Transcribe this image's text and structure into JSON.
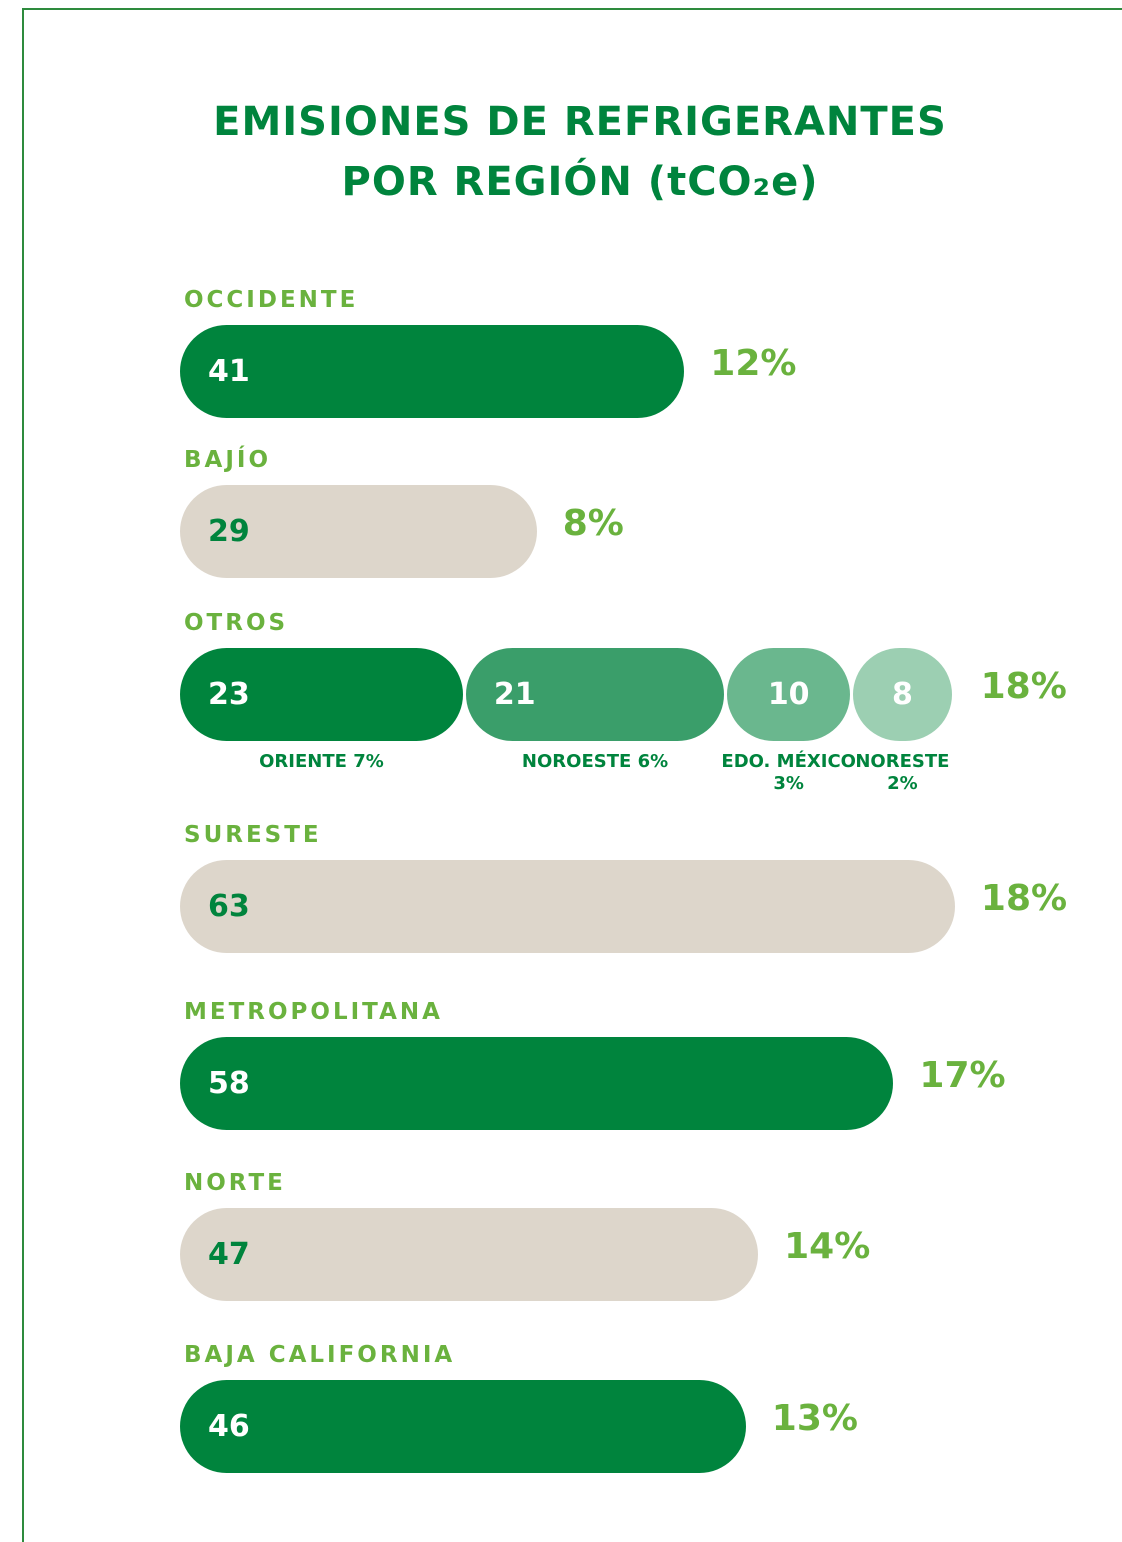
{
  "chart_data": {
    "type": "bar",
    "title": "EMISIONES DE REFRIGERANTES POR REGIÓN (tCO₂e)",
    "rows": [
      {
        "name": "OCCIDENTE",
        "value": 41,
        "share": 12,
        "share_label": "12%",
        "color": "#00843d",
        "value_color": "#ffffff"
      },
      {
        "name": "BAJÍO",
        "value": 29,
        "share": 8,
        "share_label": "8%",
        "color": "#ddd6cb",
        "value_color": "#00843d"
      },
      {
        "name": "OTROS",
        "share": 18,
        "share_label": "18%",
        "segments": [
          {
            "name": "ORIENTE",
            "value": 23,
            "share": 7,
            "share_label": "7%",
            "color": "#00843d",
            "value_color": "#ffffff"
          },
          {
            "name": "NOROESTE",
            "value": 21,
            "share": 6,
            "share_label": "6%",
            "color": "#3a9e6a",
            "value_color": "#ffffff"
          },
          {
            "name": "EDO. MÉXICO",
            "value": 10,
            "share": 3,
            "share_label": "3%",
            "color": "#6ab78e",
            "value_color": "#ffffff"
          },
          {
            "name": "NORESTE",
            "value": 8,
            "share": 2,
            "share_label": "2%",
            "color": "#9ccfb2",
            "value_color": "#ffffff"
          }
        ]
      },
      {
        "name": "SURESTE",
        "value": 63,
        "share": 18,
        "share_label": "18%",
        "color": "#ddd6cb",
        "value_color": "#00843d"
      },
      {
        "name": "METROPOLITANA",
        "value": 58,
        "share": 17,
        "share_label": "17%",
        "color": "#00843d",
        "value_color": "#ffffff"
      },
      {
        "name": "NORTE",
        "value": 47,
        "share": 14,
        "share_label": "14%",
        "color": "#ddd6cb",
        "value_color": "#00843d"
      },
      {
        "name": "BAJA CALIFORNIA",
        "value": 46,
        "share": 13,
        "share_label": "13%",
        "color": "#00843d",
        "value_color": "#ffffff"
      }
    ]
  }
}
